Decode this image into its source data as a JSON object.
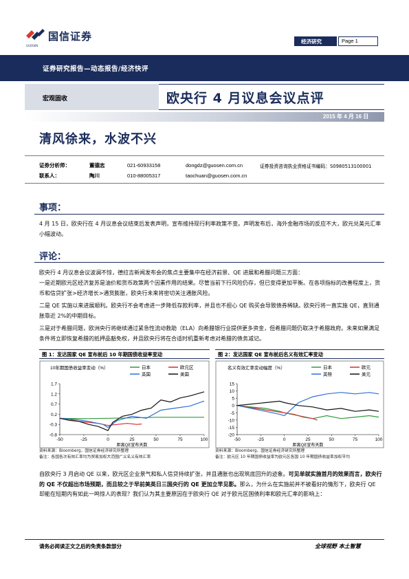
{
  "header": {
    "logo_text": "国信证券",
    "logo_en": "GUOSEN",
    "tag": "经济研究",
    "page_label": "Page 1",
    "report_type": "证券研究报告—动态报告/经济快评",
    "category": "宏观固收",
    "title": "欧央行 4 月议息会议点评",
    "date": "2015 年 4 月 16 日",
    "headline": "清风徐来，水波不兴"
  },
  "analysts": [
    {
      "role": "证券分析师：",
      "name": "董德志",
      "phone": "021-60933158",
      "email": "dongdz@guosen.com.cn",
      "cert": "证券投资咨询执业资格证书编码：S0980513100001"
    },
    {
      "role": "联系人：",
      "name": "陶川",
      "phone": "010-88005317",
      "email": "taochuan@guosen.com.cn",
      "cert": ""
    }
  ],
  "sections": {
    "events_title": "事项：",
    "events_text": "4 月 15 日，欧央行在 4 月议息会议结束后发表声明，宣布维持现行利率政策不变。声明发布后，海外金融市场的反应不大，欧元兑美元汇率小幅波动。",
    "comment_title": "评论：",
    "p1": "欧央行 4 月议息会议波澜不惊，德拉吉新闻发布会的焦点主要集中在经济前景、QE 进展和希腊问题三方面：",
    "p2": "一是近期欧元区经济复苏是油价和货币政策两个因素作用的结果。尽管当前下行风险仍存，但已变得更加平衡。在各项指标的改善程度上，货币和信贷扩张>经济增长>通货膨胀，欧央行未来将密切关注通胀风险。",
    "p3": "二是 QE 实施以来进展顺利。欧央行不会考虑进一步降低存款利率，并且也不担心 QE 购买会导致债券稀缺。欧央行将一直实施 QE，直到通胀靠近 2%的中期目标。",
    "p4": "三是对于希腊问题，欧洲央行将继续通过紧急性流动救助（ELA）向希腊银行业提供更多资金，但希腊问题仍取决于希腊政府。未来如果满足条件将立即恢复希腊的抵押品豁免权，并且欧央行将在合适时机重新考虑对希腊的债务减记。",
    "p5_a": "自欧央行 3 月启动 QE 以来，欧元区企业景气和私人信贷持续扩张，并且通胀也出现筑底回升的迹象。",
    "p5_b": "可见单就实施首月的效果而言，欧央行的 QE 不仅超出市场预期，而且较之于早前美英日三国央行的 QE 更加立竿见影。",
    "p5_c": "那么，为什么在实施前并不被看好的情形下，欧央行 QE 却能在短期内有如此一鸣惊人的表现？我们认为其主要原因在于欧央行 QE 对于欧元区国债利率和欧元汇率的影响上："
  },
  "figure1": {
    "header": "图 1：发达国家 QE 宣布前后 10 年期国债收益率变动",
    "source": "资料来源：Bloomberg，国信证券经济研究所整理",
    "note": "备注：各国各次有效汇率均为贸易加权大范围广义名义有效汇率",
    "chart_data": {
      "type": "line",
      "title": "10年期国债收益率变动（%）",
      "xlabel": "距离QE宣布天数",
      "xlim": [
        -50,
        100
      ],
      "ylim": [
        -0.8,
        1.7
      ],
      "xticks": [
        -50,
        -25,
        0,
        25,
        50,
        75,
        100
      ],
      "yticks": [
        1.7,
        1.2,
        0.7,
        0.2,
        -0.3,
        -0.8
      ],
      "grid": false,
      "legend_position": "top-right",
      "series": [
        {
          "name": "日本",
          "color": "#2e9b3c",
          "x": [
            -50,
            -25,
            0,
            25,
            50,
            75,
            100
          ],
          "y": [
            0.0,
            -0.02,
            0.0,
            0.02,
            0.05,
            0.05,
            0.05
          ]
        },
        {
          "name": "欧元区",
          "color": "#d92a2a",
          "x": [
            -50,
            -40,
            -30,
            -20,
            -10,
            0,
            10,
            20,
            30,
            35
          ],
          "y": [
            0.0,
            -0.05,
            -0.15,
            -0.2,
            -0.25,
            -0.35,
            -0.3,
            -0.25,
            -0.3,
            -0.28
          ]
        },
        {
          "name": "英国",
          "color": "#2f6fd6",
          "x": [
            -50,
            -35,
            -20,
            -5,
            0,
            10,
            25,
            40,
            55,
            70,
            85,
            100
          ],
          "y": [
            0.0,
            -0.05,
            -0.15,
            -0.3,
            -0.45,
            -0.1,
            0.1,
            0.0,
            0.4,
            0.5,
            0.6,
            0.85
          ]
        },
        {
          "name": "美国",
          "color": "#111111",
          "x": [
            -50,
            -40,
            -30,
            -20,
            -10,
            0,
            5,
            15,
            25,
            35,
            45,
            55,
            65,
            75,
            85,
            100
          ],
          "y": [
            0.0,
            -0.1,
            -0.15,
            -0.3,
            -0.4,
            -0.6,
            -0.2,
            0.1,
            0.2,
            0.4,
            0.5,
            0.9,
            0.8,
            1.0,
            1.1,
            1.3
          ]
        }
      ]
    }
  },
  "figure2": {
    "header": "图 2：发达国家 QE 宣布前后名义有效汇率变动",
    "source": "资料来源：Bloomberg，国信证券经济研究所整理",
    "note": "备注：欧元区 10 年期国债收益率为欧元区各国 10 年期国债收益率加权平均",
    "chart_data": {
      "type": "line",
      "title": "名义有效汇率变动幅度（%）",
      "xlabel": "距离QE宣布天数",
      "xlim": [
        -50,
        100
      ],
      "ylim": [
        -20,
        15
      ],
      "xticks": [
        -50,
        -25,
        0,
        25,
        50,
        75,
        100
      ],
      "yticks": [
        15,
        10,
        5,
        0,
        -5,
        -10,
        -15,
        -20
      ],
      "grid": false,
      "legend_position": "top",
      "series": [
        {
          "name": "日本",
          "color": "#2e9b3c",
          "x": [
            -50,
            -35,
            -20,
            -5,
            0,
            15,
            30,
            45,
            60,
            75,
            90,
            100
          ],
          "y": [
            0.0,
            -1.0,
            -2.0,
            -4.0,
            -5.0,
            -7.0,
            -9.0,
            -7.0,
            -9.0,
            -8.0,
            -7.0,
            -8.0
          ]
        },
        {
          "name": "欧元",
          "color": "#d92a2a",
          "x": [
            -50,
            -40,
            -30,
            -20,
            -10,
            0,
            10,
            20,
            30,
            35
          ],
          "y": [
            0.0,
            -1.0,
            -2.0,
            -3.0,
            -4.0,
            -5.0,
            -6.0,
            -8.0,
            -9.0,
            -10.0
          ]
        },
        {
          "name": "英镑",
          "color": "#2f6fd6",
          "x": [
            -50,
            -35,
            -20,
            -5,
            0,
            15,
            30,
            45,
            60,
            75,
            90,
            100
          ],
          "y": [
            0.0,
            -2.0,
            -4.0,
            -6.0,
            -7.0,
            2.0,
            6.0,
            8.0,
            9.0,
            8.0,
            9.0,
            8.0
          ]
        },
        {
          "name": "美元",
          "color": "#111111",
          "x": [
            -50,
            -35,
            -20,
            -5,
            0,
            15,
            30,
            45,
            60,
            75,
            90,
            100
          ],
          "y": [
            0.0,
            1.0,
            2.0,
            3.0,
            2.0,
            0.0,
            -1.0,
            -3.0,
            -2.0,
            -4.0,
            -3.0,
            -4.0
          ]
        }
      ]
    }
  },
  "footer": {
    "left": "请务必阅读正文之后的免责条款部分",
    "right": "全球视野  本土智慧"
  }
}
